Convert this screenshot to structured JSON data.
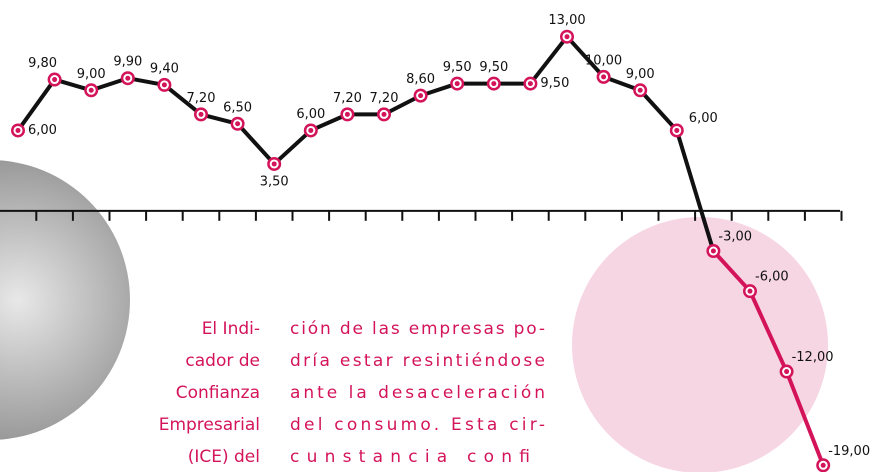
{
  "chart_data": {
    "type": "line",
    "categories": [
      null,
      null,
      null,
      null,
      null,
      null,
      null,
      null,
      null,
      null,
      null,
      null,
      null,
      null,
      null,
      null,
      null,
      null,
      null,
      null,
      null,
      null,
      null
    ],
    "series": [
      {
        "color": "#111111",
        "negative_color": "#d4145a",
        "values": [
          6.0,
          9.8,
          9.0,
          9.9,
          9.4,
          7.2,
          6.5,
          3.5,
          6.0,
          7.2,
          7.2,
          8.6,
          9.5,
          9.5,
          9.5,
          13.0,
          10.0,
          9.0,
          6.0,
          -3.0,
          -6.0,
          -12.0,
          -19.0
        ],
        "value_labels": [
          "6,00",
          "9,80",
          "9,00",
          "9,90",
          "9,40",
          "7,20",
          "6,50",
          "3,50",
          "6,00",
          "7,20",
          "7,20",
          "8,60",
          "9,50",
          "9,50",
          "9,50",
          "13,00",
          "10,00",
          "9,00",
          "6,00",
          "-3,00",
          "-6,00",
          "-12,00",
          "-19,00"
        ]
      }
    ],
    "ylim": [
      -19.5,
      13.5
    ],
    "marker_color": "#d4145a",
    "text_columns": [
      [
        "El Indi-",
        "cador de",
        "Confianza",
        "Empresarial",
        "(ICE) del"
      ],
      [
        "ción de las empresas po-",
        "dría estar resintiéndose",
        "ante la desaceleración",
        "del consumo. Esta cir-",
        "cunstancia confi"
      ]
    ]
  }
}
